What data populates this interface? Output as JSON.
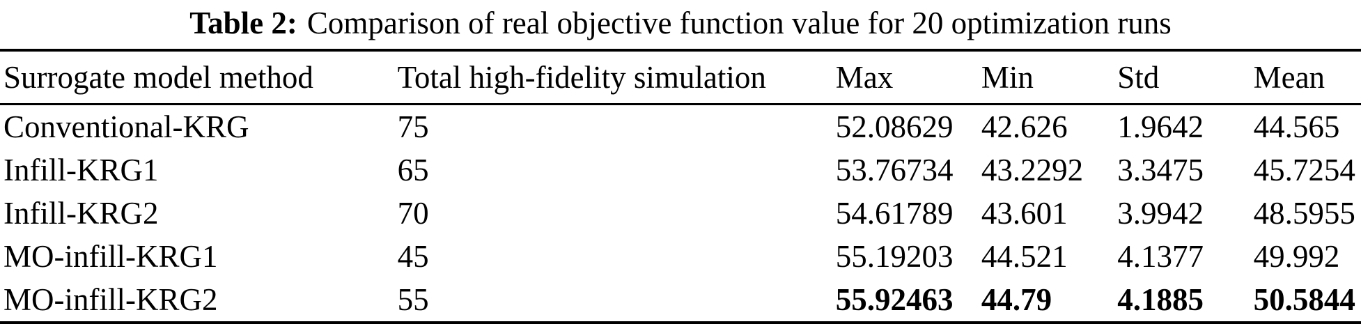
{
  "caption": {
    "label": "Table 2:",
    "text": "Comparison of real objective function value for 20 optimization runs"
  },
  "table": {
    "columns": [
      "Surrogate model method",
      "Total high-fidelity simulation",
      "Max",
      "Min",
      "Std",
      "Mean"
    ],
    "rows": [
      {
        "method": "Conventional-KRG",
        "simulations": "75",
        "max": "52.08629",
        "min": "42.626",
        "std": "1.9642",
        "mean": "44.565",
        "bold_values": false
      },
      {
        "method": "Infill-KRG1",
        "simulations": "65",
        "max": "53.76734",
        "min": "43.2292",
        "std": "3.3475",
        "mean": "45.7254",
        "bold_values": false
      },
      {
        "method": "Infill-KRG2",
        "simulations": "70",
        "max": "54.61789",
        "min": "43.601",
        "std": "3.9942",
        "mean": "48.5955",
        "bold_values": false
      },
      {
        "method": "MO-infill-KRG1",
        "simulations": "45",
        "max": "55.19203",
        "min": "44.521",
        "std": "4.1377",
        "mean": "49.992",
        "bold_values": false
      },
      {
        "method": "MO-infill-KRG2",
        "simulations": "55",
        "max": "55.92463",
        "min": "44.79",
        "std": "4.1885",
        "mean": "50.5844",
        "bold_values": true
      }
    ]
  },
  "colors": {
    "text": "#000000",
    "background": "#ffffff",
    "rule": "#000000"
  }
}
